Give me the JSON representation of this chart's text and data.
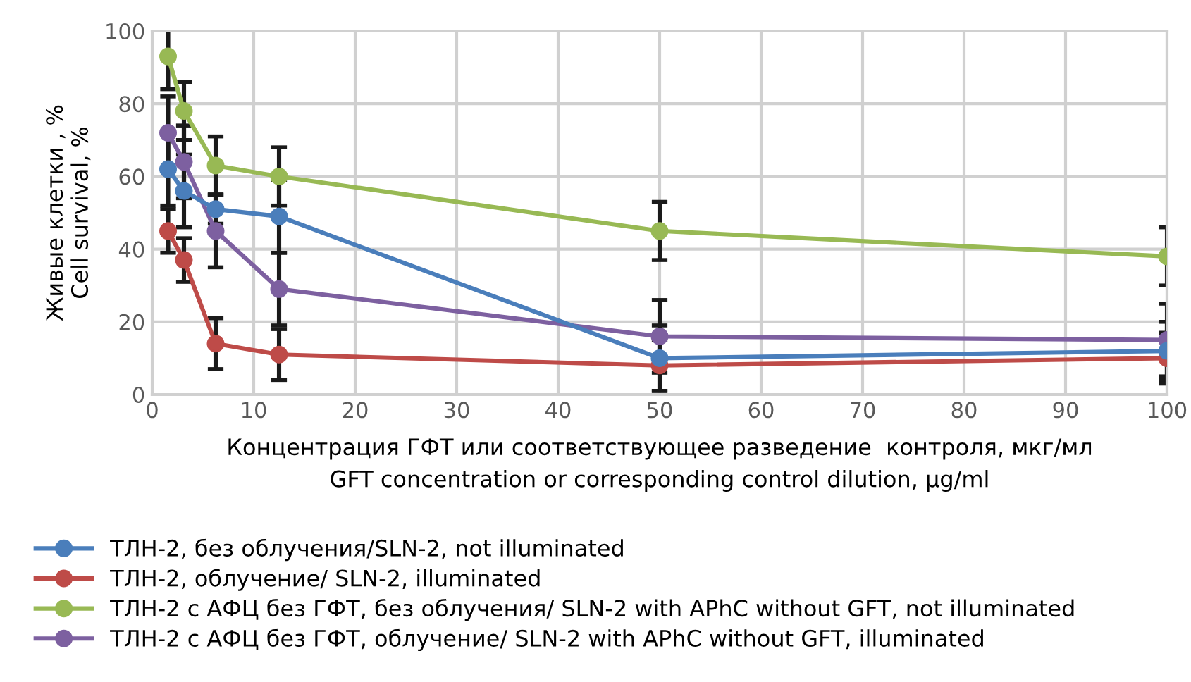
{
  "chart_data": {
    "type": "line",
    "xlabel": "Концентрация ГФТ или соответствующее разведение  контроля, мкг/мл\nGFT concentration or corresponding control dilution, µg/ml",
    "ylabel": "Живые клетки , %\nCell survival, %",
    "xlim": [
      0,
      100
    ],
    "xticks": [
      0,
      10,
      20,
      30,
      40,
      50,
      60,
      70,
      80,
      90,
      100
    ],
    "ylim": [
      0,
      100
    ],
    "yticks": [
      0,
      20,
      40,
      60,
      80,
      100
    ],
    "grid": true,
    "legend": "bottom",
    "marker": "circle",
    "line_style": "solid",
    "series": [
      {
        "name": "ТЛН-2, без облучения/SLN-2, not illuminated",
        "color": "#4a7ebb",
        "x": [
          1.5625,
          3.125,
          6.25,
          12.5,
          50,
          100
        ],
        "values": [
          62,
          56,
          51,
          49,
          10,
          12
        ],
        "errors": [
          10,
          10,
          4,
          10,
          9,
          8
        ]
      },
      {
        "name": "ТЛН-2, облучение/ SLN-2, illuminated",
        "color": "#be4b48",
        "x": [
          1.5625,
          3.125,
          6.25,
          12.5,
          50,
          100
        ],
        "values": [
          45,
          37,
          14,
          11,
          8,
          10
        ],
        "errors": [
          6,
          6,
          7,
          7,
          7,
          7
        ]
      },
      {
        "name": "ТЛН-2 с АФЦ без ГФТ, без облучения/ SLN-2 with APhC without GFT, not illuminated",
        "color": "#98b954",
        "x": [
          1.5625,
          3.125,
          6.25,
          12.5,
          50,
          100
        ],
        "values": [
          93,
          78,
          63,
          60,
          45,
          38
        ],
        "errors": [
          9,
          8,
          8,
          8,
          8,
          8
        ]
      },
      {
        "name": "ТЛН-2 с АФЦ без ГФТ, облучение/ SLN-2 with APhC without GFT, illuminated",
        "color": "#7d60a0",
        "x": [
          1.5625,
          3.125,
          6.25,
          12.5,
          50,
          100
        ],
        "values": [
          72,
          64,
          45,
          29,
          16,
          15
        ],
        "errors": [
          10,
          10,
          10,
          10,
          10,
          10
        ]
      }
    ]
  }
}
